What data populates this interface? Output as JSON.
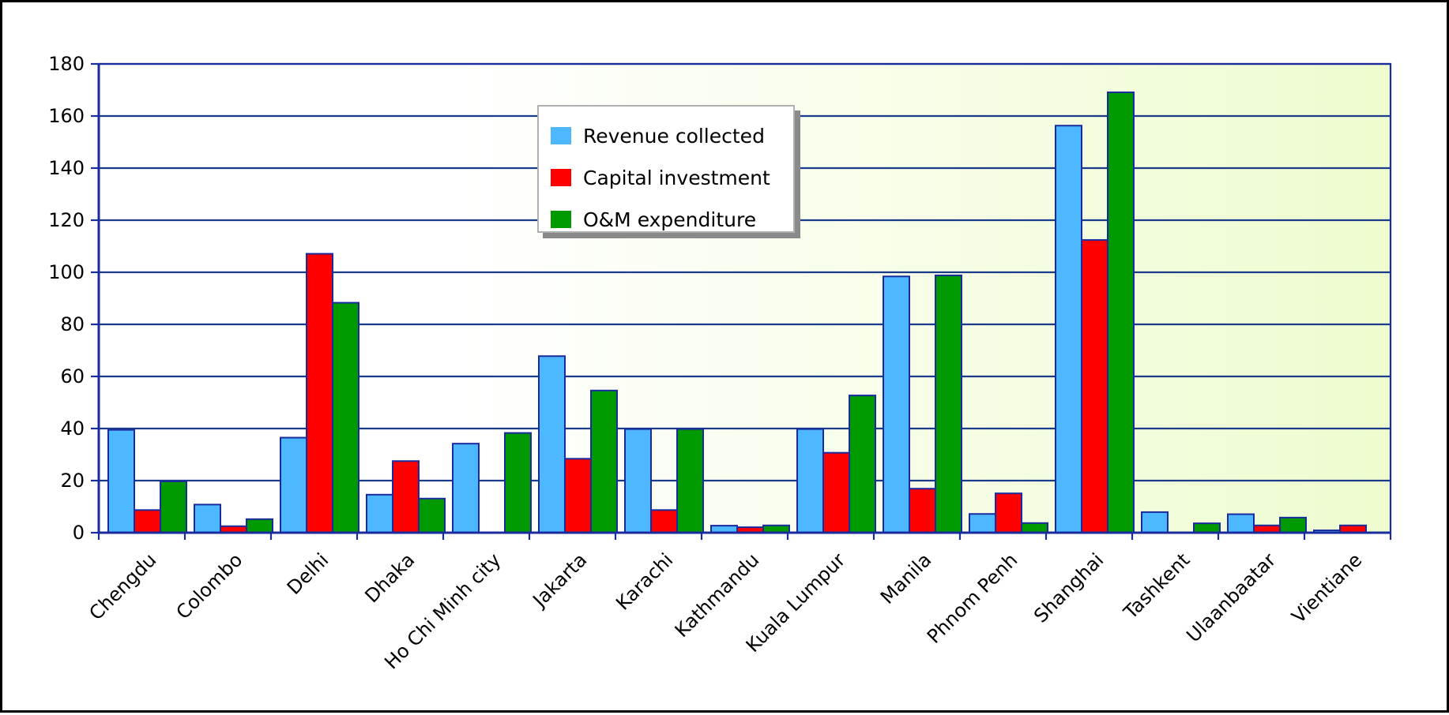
{
  "chart_data": {
    "type": "bar",
    "title": "",
    "xlabel": "",
    "ylabel": "",
    "ylim": [
      0,
      180
    ],
    "yticks": [
      0,
      20,
      40,
      60,
      80,
      100,
      120,
      140,
      160,
      180
    ],
    "grid": true,
    "legend_position": "top-center",
    "categories": [
      "Chengdu",
      "Colombo",
      "Delhi",
      "Dhaka",
      "Ho Chi Minh city",
      "Jakarta",
      "Karachi",
      "Kathmandu",
      "Kuala Lumpur",
      "Manila",
      "Phnom Penh",
      "Shanghai",
      "Tashkent",
      "Ulaanbaatar",
      "Vientiane"
    ],
    "series": [
      {
        "name": "Revenue collected",
        "color": "#4db8ff",
        "values": [
          39.5,
          10.8,
          36.5,
          14.6,
          34.2,
          67.8,
          39.8,
          2.7,
          39.8,
          98.4,
          7.2,
          156.3,
          7.9,
          7.1,
          0.9
        ]
      },
      {
        "name": "Capital investment",
        "color": "#ff0000",
        "values": [
          8.7,
          2.5,
          107.1,
          27.5,
          0,
          28.4,
          8.7,
          2.1,
          30.7,
          16.9,
          15.1,
          112.4,
          0,
          2.8,
          2.8
        ]
      },
      {
        "name": "O&M expenditure",
        "color": "#009900",
        "values": [
          19.7,
          5.2,
          88.3,
          13.1,
          38.3,
          54.6,
          39.8,
          2.8,
          52.7,
          98.8,
          3.7,
          169.1,
          3.6,
          5.8,
          0
        ]
      }
    ],
    "colors": {
      "bar_outline": "#1a2b9e",
      "axis": "#1a2b9e",
      "gridline": "#1a3a8a",
      "plot_bg_left": "#ffffff",
      "plot_bg_right": "#eefccf"
    }
  }
}
